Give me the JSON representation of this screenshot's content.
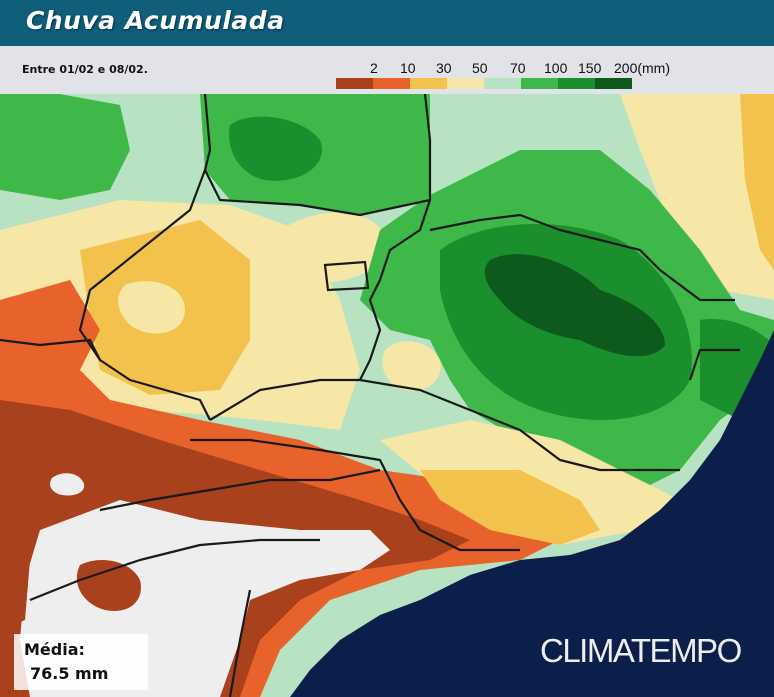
{
  "header": {
    "title": "Chuva Acumulada"
  },
  "period": {
    "text": "Entre 01/02 e 08/02."
  },
  "legend": {
    "labels": [
      "2",
      "10",
      "30",
      "50",
      "70",
      "100",
      "150",
      "200(mm)"
    ],
    "colors": [
      "#a8411c",
      "#e8622c",
      "#f2c24d",
      "#f6e7a6",
      "#b7e3c2",
      "#3fb84a",
      "#1b8f2e",
      "#0e5a1c"
    ]
  },
  "map": {
    "colors": {
      "ocean": "#0b1f4a",
      "dry": "#eeeeee",
      "brown": "#a8411c",
      "orange": "#e8622c",
      "yellow": "#f2c24d",
      "cream": "#f6e7a6",
      "lightgreen": "#b7e3c2",
      "green": "#3fb84a",
      "darkgreen": "#1b8f2e",
      "deepgreen": "#0e5a1c",
      "borders": "#1a1a1a"
    }
  },
  "media": {
    "label": "Média:",
    "value": "76.5 mm"
  },
  "brand": {
    "text": "CLIMATEMPO"
  }
}
